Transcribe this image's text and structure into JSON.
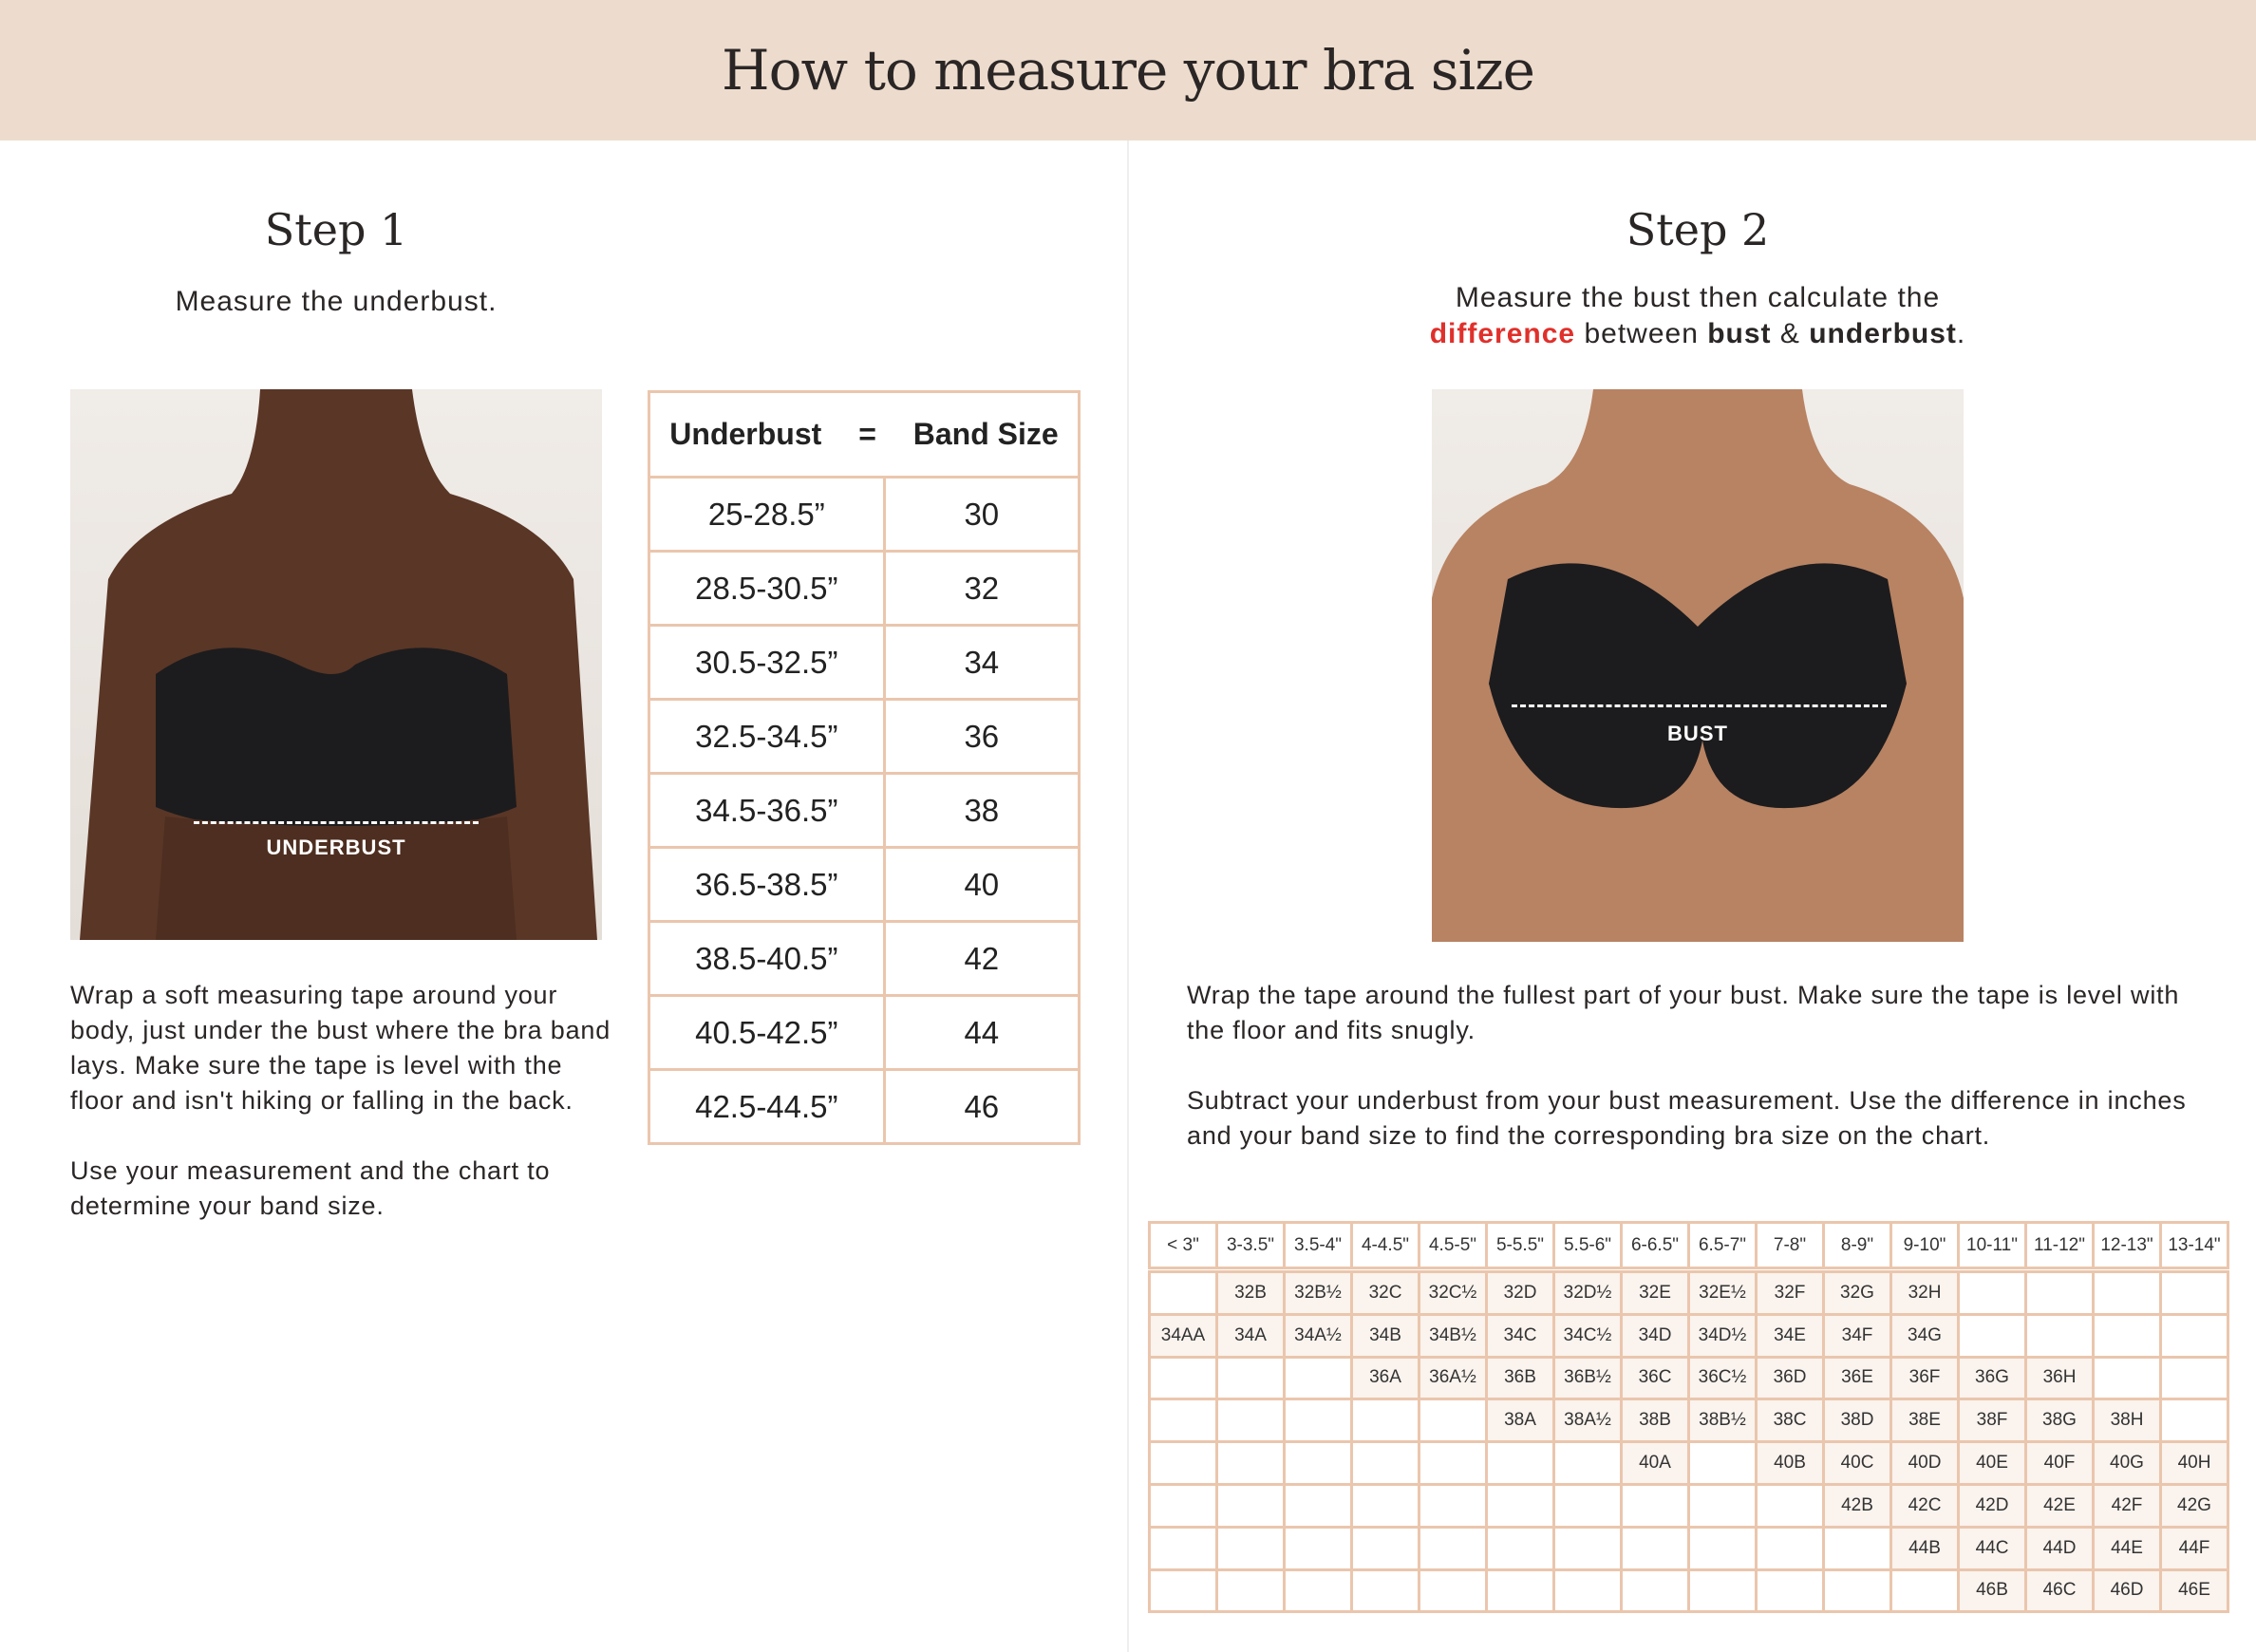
{
  "header": {
    "title": "How to measure your bra size"
  },
  "step1": {
    "title": "Step 1",
    "subtitle": "Measure the underbust.",
    "image_label": "UNDERBUST",
    "paragraphs": [
      "Wrap a soft measuring tape around your body, just under the bust where the bra band lays. Make sure the tape is level with the floor and isn't hiking or falling in the back.",
      "Use your measurement and the chart to determine your band size."
    ]
  },
  "band_table": {
    "headers": [
      "Underbust",
      "=",
      "Band Size"
    ],
    "rows": [
      [
        "25-28.5”",
        "30"
      ],
      [
        "28.5-30.5”",
        "32"
      ],
      [
        "30.5-32.5”",
        "34"
      ],
      [
        "32.5-34.5”",
        "36"
      ],
      [
        "34.5-36.5”",
        "38"
      ],
      [
        "36.5-38.5”",
        "40"
      ],
      [
        "38.5-40.5”",
        "42"
      ],
      [
        "40.5-42.5”",
        "44"
      ],
      [
        "42.5-44.5”",
        "46"
      ]
    ]
  },
  "step2": {
    "title": "Step 2",
    "subtitle_line1": "Measure the bust then calculate the",
    "subtitle_highlight": "difference",
    "subtitle_mid": " between ",
    "subtitle_bust": "bust",
    "subtitle_amp": " & ",
    "subtitle_underbust": "underbust",
    "subtitle_end": ".",
    "image_label": "BUST",
    "paragraphs": [
      "Wrap the tape around the fullest part of your bust. Make sure the tape is level with the floor and fits snugly.",
      "Subtract your underbust from your bust measurement. Use the difference in inches and your band size to find the corresponding bra size on the chart."
    ]
  },
  "size_chart": {
    "columns": [
      "< 3\"",
      "3-3.5\"",
      "3.5-4\"",
      "4-4.5\"",
      "4.5-5\"",
      "5-5.5\"",
      "5.5-6\"",
      "6-6.5\"",
      "6.5-7\"",
      "7-8\"",
      "8-9\"",
      "9-10\"",
      "10-11\"",
      "11-12\"",
      "12-13\"",
      "13-14\""
    ],
    "rows": [
      [
        "",
        "32B",
        "32B½",
        "32C",
        "32C½",
        "32D",
        "32D½",
        "32E",
        "32E½",
        "32F",
        "32G",
        "32H",
        "",
        "",
        "",
        ""
      ],
      [
        "34AA",
        "34A",
        "34A½",
        "34B",
        "34B½",
        "34C",
        "34C½",
        "34D",
        "34D½",
        "34E",
        "34F",
        "34G",
        "",
        "",
        "",
        ""
      ],
      [
        "",
        "",
        "",
        "36A",
        "36A½",
        "36B",
        "36B½",
        "36C",
        "36C½",
        "36D",
        "36E",
        "36F",
        "36G",
        "36H",
        "",
        ""
      ],
      [
        "",
        "",
        "",
        "",
        "",
        "38A",
        "38A½",
        "38B",
        "38B½",
        "38C",
        "38D",
        "38E",
        "38F",
        "38G",
        "38H",
        ""
      ],
      [
        "",
        "",
        "",
        "",
        "",
        "",
        "",
        "40A",
        "",
        "40B",
        "40C",
        "40D",
        "40E",
        "40F",
        "40G",
        "40H"
      ],
      [
        "",
        "",
        "",
        "",
        "",
        "",
        "",
        "",
        "",
        "",
        "42B",
        "42C",
        "42D",
        "42E",
        "42F",
        "42G"
      ],
      [
        "",
        "",
        "",
        "",
        "",
        "",
        "",
        "",
        "",
        "",
        "",
        "44B",
        "44C",
        "44D",
        "44E",
        "44F"
      ],
      [
        "",
        "",
        "",
        "",
        "",
        "",
        "",
        "",
        "",
        "",
        "",
        "",
        "46B",
        "46C",
        "46D",
        "46E"
      ]
    ]
  },
  "colors": {
    "header_bg": "#eddccd",
    "border": "#eac6ad",
    "filled_cell": "#faf3ee",
    "highlight": "#e0302b"
  }
}
